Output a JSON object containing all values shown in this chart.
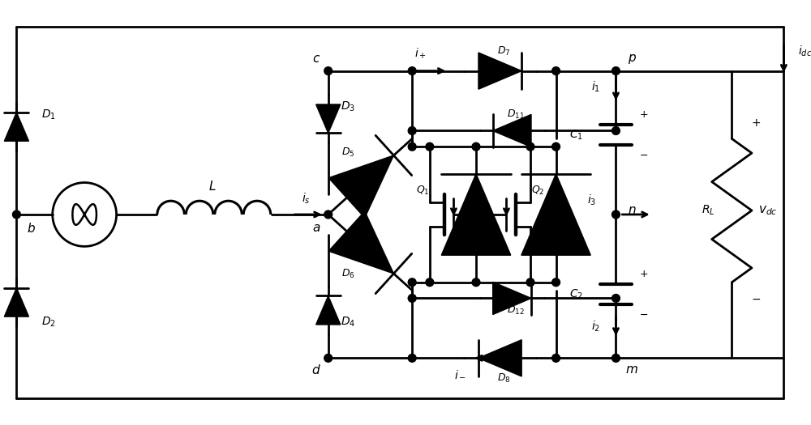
{
  "bg_color": "#ffffff",
  "line_color": "#000000",
  "lw": 2.0,
  "fig_width": 10.0,
  "fig_height": 5.25,
  "dpi": 100
}
